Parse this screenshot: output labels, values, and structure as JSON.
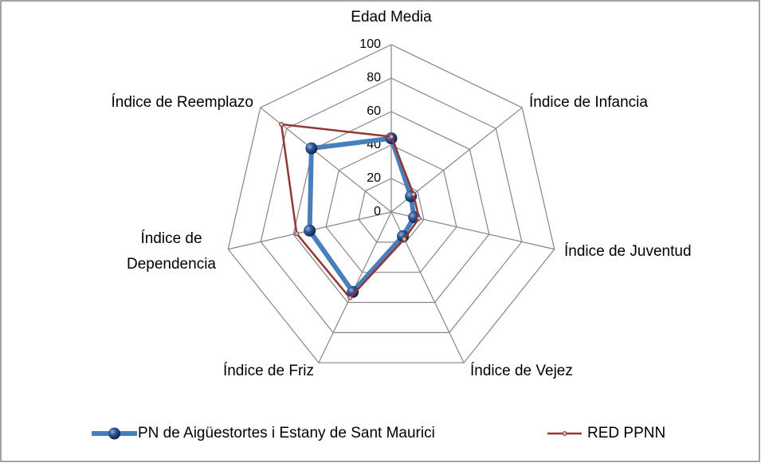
{
  "chart_data": {
    "type": "radar",
    "categories": [
      "Edad Media",
      "Índice de Infancia",
      "Índice de Juventud",
      "Índice de Vejez",
      "Índice de Friz",
      "Índice de Dependencia",
      "Índice de Reemplazo"
    ],
    "series": [
      {
        "name": "PN de Aigüestortes i Estany de Sant Maurici",
        "color": "#4a7ebb",
        "values": [
          44,
          15,
          14,
          16,
          53,
          50,
          61
        ]
      },
      {
        "name": "RED PPNN",
        "color": "#943634",
        "values": [
          45,
          17,
          17,
          18,
          57,
          58,
          84
        ]
      }
    ],
    "ylim": [
      0,
      100
    ],
    "yticks": [
      0,
      20,
      40,
      60,
      80,
      100
    ],
    "grid": true,
    "legend": "bottom"
  }
}
